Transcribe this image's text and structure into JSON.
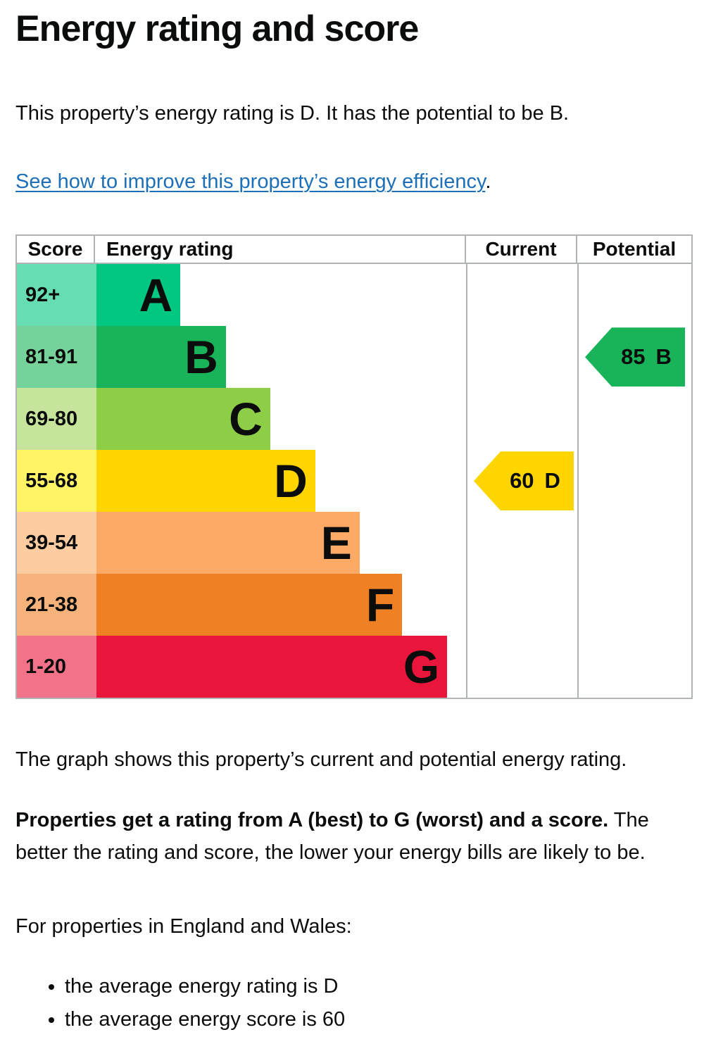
{
  "page": {
    "title": "Energy rating and score",
    "intro": "This property’s energy rating is D. It has the potential to be B.",
    "link_text": "See how to improve this property’s energy efficiency",
    "link_suffix": ".",
    "graph_caption": "The graph shows this property’s current and potential energy rating.",
    "explain_bold": "Properties get a rating from A (best) to G (worst) and a score.",
    "explain_rest": " The better the rating and score, the lower your energy bills are likely to be.",
    "regional_intro": "For properties in England and Wales:",
    "bullets": [
      "the average energy rating is D",
      "the average energy score is 60"
    ]
  },
  "table": {
    "headers": {
      "score": "Score",
      "rating": "Energy rating",
      "current": "Current",
      "potential": "Potential"
    },
    "bands": [
      {
        "score": "92+",
        "letter": "A",
        "color": "#00c781",
        "tint": "#66ddb3",
        "bar_pct": 22.7
      },
      {
        "score": "81-91",
        "letter": "B",
        "color": "#19b459",
        "tint": "#75d29b",
        "bar_pct": 35.0
      },
      {
        "score": "69-80",
        "letter": "C",
        "color": "#8dce46",
        "tint": "#c7e49c",
        "bar_pct": 47.0
      },
      {
        "score": "55-68",
        "letter": "D",
        "color": "#ffd500",
        "tint": "#fff466",
        "bar_pct": 59.2
      },
      {
        "score": "39-54",
        "letter": "E",
        "color": "#fcaa65",
        "tint": "#fdcca1",
        "bar_pct": 71.2
      },
      {
        "score": "21-38",
        "letter": "F",
        "color": "#ef8023",
        "tint": "#f5b27b",
        "bar_pct": 82.7
      },
      {
        "score": "1-20",
        "letter": "G",
        "color": "#e9153b",
        "tint": "#f27389",
        "bar_pct": 94.9
      }
    ],
    "current": {
      "value": "60",
      "letter": "D",
      "band_index": 3,
      "color": "#ffd500"
    },
    "potential": {
      "value": "85",
      "letter": "B",
      "band_index": 1,
      "color": "#19b459"
    }
  },
  "chart_data": {
    "type": "bar",
    "title": "Energy rating and score",
    "columns": [
      "Score",
      "Energy rating",
      "Current",
      "Potential"
    ],
    "categories": [
      "A",
      "B",
      "C",
      "D",
      "E",
      "F",
      "G"
    ],
    "score_ranges": [
      "92+",
      "81-91",
      "69-80",
      "55-68",
      "39-54",
      "21-38",
      "1-20"
    ],
    "bar_lengths_pct": [
      22.7,
      35.0,
      47.0,
      59.2,
      71.2,
      82.7,
      94.9
    ],
    "band_colors": [
      "#00c781",
      "#19b459",
      "#8dce46",
      "#ffd500",
      "#fcaa65",
      "#ef8023",
      "#e9153b"
    ],
    "markers": [
      {
        "label": "Current",
        "score": 60,
        "rating": "D"
      },
      {
        "label": "Potential",
        "score": 85,
        "rating": "B"
      }
    ],
    "legend_position": "none",
    "grid": false
  }
}
